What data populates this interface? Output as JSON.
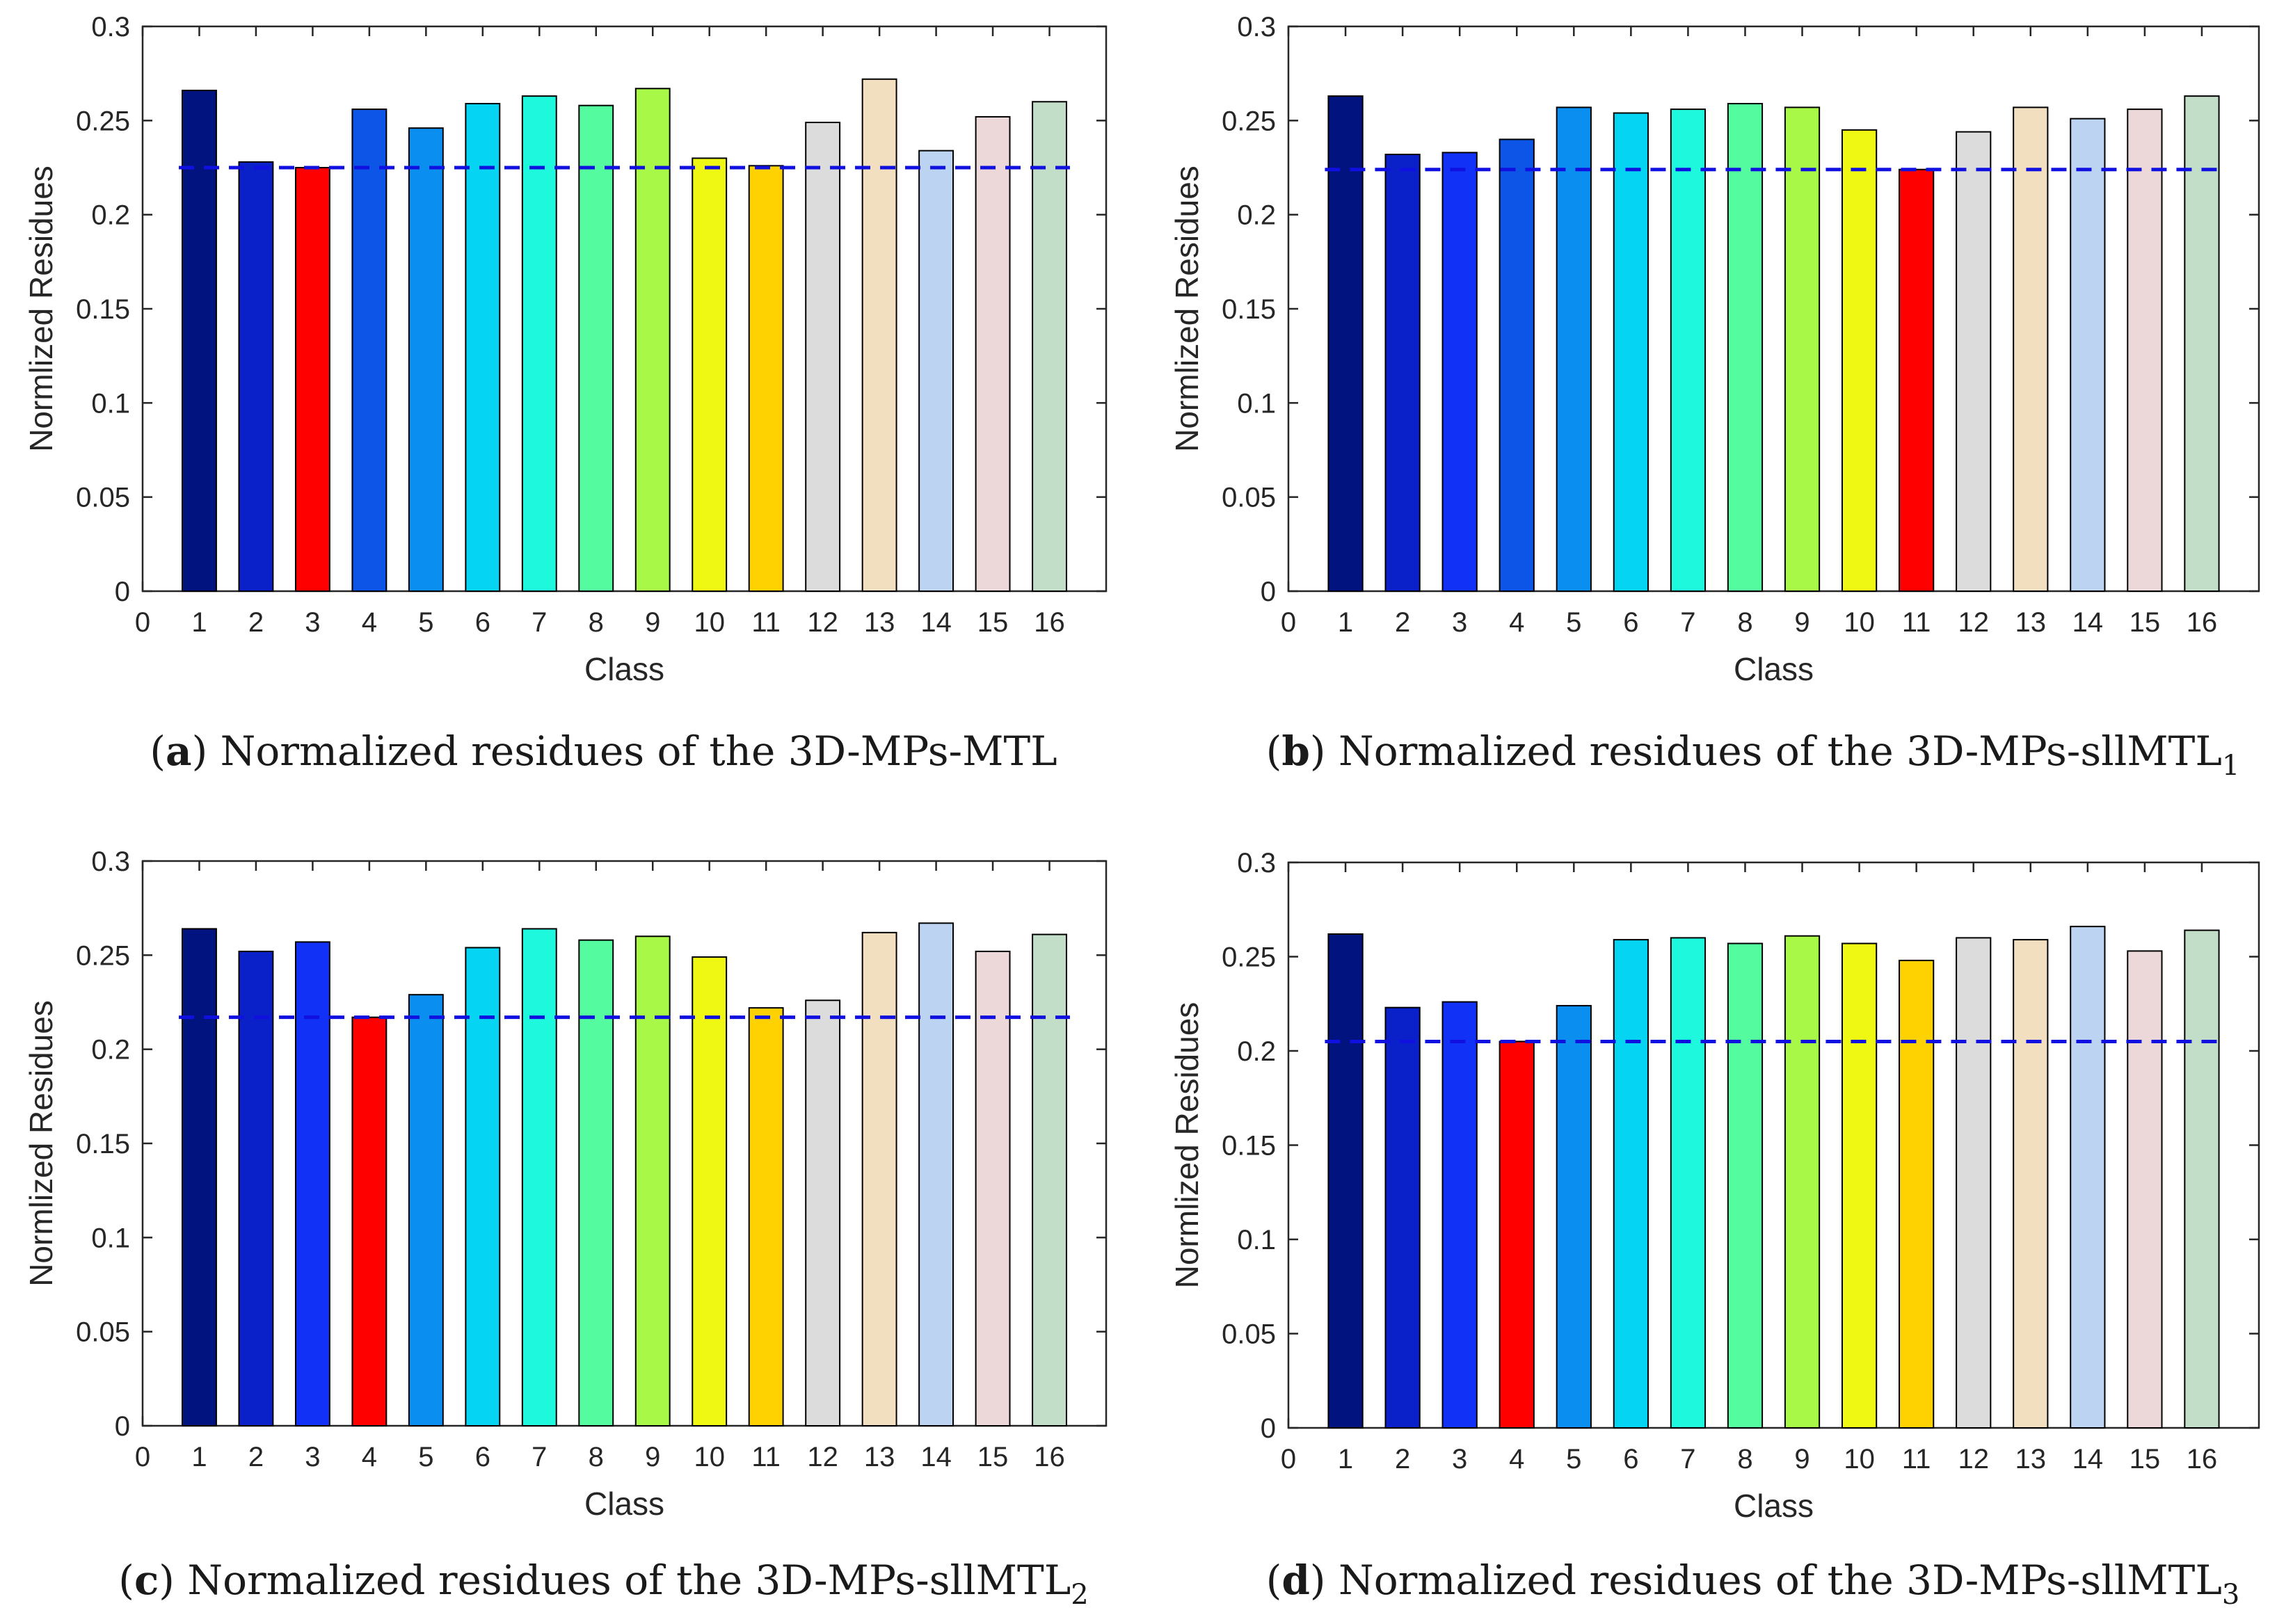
{
  "chart_data": [
    {
      "type": "bar",
      "panel_letter": "a",
      "caption_text": "Normalized residues of the 3D-MPs-MTL",
      "caption_subscript": "",
      "xlabel": "Class",
      "ylabel": "Normlized Residues",
      "categories": [
        1,
        2,
        3,
        4,
        5,
        6,
        7,
        8,
        9,
        10,
        11,
        12,
        13,
        14,
        15,
        16
      ],
      "values": [
        0.266,
        0.228,
        0.225,
        0.256,
        0.246,
        0.259,
        0.263,
        0.258,
        0.267,
        0.23,
        0.226,
        0.249,
        0.272,
        0.234,
        0.252,
        0.26
      ],
      "min_class": 3,
      "reference_line": 0.225,
      "xlim": [
        0,
        17
      ],
      "ylim": [
        0,
        0.3
      ],
      "xticks": [
        "0",
        "1",
        "2",
        "3",
        "4",
        "5",
        "6",
        "7",
        "8",
        "9",
        "10",
        "11",
        "12",
        "13",
        "14",
        "15",
        "16"
      ],
      "yticks": [
        "0",
        "0.05",
        "0.1",
        "0.15",
        "0.2",
        "0.25",
        "0.3"
      ]
    },
    {
      "type": "bar",
      "panel_letter": "b",
      "caption_text": "Normalized residues of the 3D-MPs-sllMTL",
      "caption_subscript": "1",
      "xlabel": "Class",
      "ylabel": "Normlized Residues",
      "categories": [
        1,
        2,
        3,
        4,
        5,
        6,
        7,
        8,
        9,
        10,
        11,
        12,
        13,
        14,
        15,
        16
      ],
      "values": [
        0.263,
        0.232,
        0.233,
        0.24,
        0.257,
        0.254,
        0.256,
        0.259,
        0.257,
        0.245,
        0.224,
        0.244,
        0.257,
        0.251,
        0.256,
        0.263
      ],
      "min_class": 11,
      "reference_line": 0.224,
      "xlim": [
        0,
        17
      ],
      "ylim": [
        0,
        0.3
      ],
      "xticks": [
        "0",
        "1",
        "2",
        "3",
        "4",
        "5",
        "6",
        "7",
        "8",
        "9",
        "10",
        "11",
        "12",
        "13",
        "14",
        "15",
        "16"
      ],
      "yticks": [
        "0",
        "0.05",
        "0.1",
        "0.15",
        "0.2",
        "0.25",
        "0.3"
      ]
    },
    {
      "type": "bar",
      "panel_letter": "c",
      "caption_text": "Normalized residues of the 3D-MPs-sllMTL",
      "caption_subscript": "2",
      "xlabel": "Class",
      "ylabel": "Normlized Residues",
      "categories": [
        1,
        2,
        3,
        4,
        5,
        6,
        7,
        8,
        9,
        10,
        11,
        12,
        13,
        14,
        15,
        16
      ],
      "values": [
        0.264,
        0.252,
        0.257,
        0.217,
        0.229,
        0.254,
        0.264,
        0.258,
        0.26,
        0.249,
        0.222,
        0.226,
        0.262,
        0.267,
        0.252,
        0.261
      ],
      "min_class": 4,
      "reference_line": 0.217,
      "xlim": [
        0,
        17
      ],
      "ylim": [
        0,
        0.3
      ],
      "xticks": [
        "0",
        "1",
        "2",
        "3",
        "4",
        "5",
        "6",
        "7",
        "8",
        "9",
        "10",
        "11",
        "12",
        "13",
        "14",
        "15",
        "16"
      ],
      "yticks": [
        "0",
        "0.05",
        "0.1",
        "0.15",
        "0.2",
        "0.25",
        "0.3"
      ]
    },
    {
      "type": "bar",
      "panel_letter": "d",
      "caption_text": "Normalized residues of the 3D-MPs-sllMTL",
      "caption_subscript": "3",
      "xlabel": "Class",
      "ylabel": "Normlized Residues",
      "categories": [
        1,
        2,
        3,
        4,
        5,
        6,
        7,
        8,
        9,
        10,
        11,
        12,
        13,
        14,
        15,
        16
      ],
      "values": [
        0.262,
        0.223,
        0.226,
        0.205,
        0.224,
        0.259,
        0.26,
        0.257,
        0.261,
        0.257,
        0.248,
        0.26,
        0.259,
        0.266,
        0.253,
        0.264
      ],
      "min_class": 4,
      "reference_line": 0.205,
      "xlim": [
        0,
        17
      ],
      "ylim": [
        0,
        0.3
      ],
      "xticks": [
        "0",
        "1",
        "2",
        "3",
        "4",
        "5",
        "6",
        "7",
        "8",
        "9",
        "10",
        "11",
        "12",
        "13",
        "14",
        "15",
        "16"
      ],
      "yticks": [
        "0",
        "0.05",
        "0.1",
        "0.15",
        "0.2",
        "0.25",
        "0.3"
      ]
    }
  ],
  "colors": {
    "bars": [
      "#00137f",
      "#0a21c9",
      "#1131f6",
      "#0d55e6",
      "#0a8ff0",
      "#05d5f2",
      "#1ef8dc",
      "#55fb9f",
      "#a8f847",
      "#eef812",
      "#fed100",
      "#dcdcdc",
      "#f2dfbf",
      "#bcd4f2",
      "#ecd8d9",
      "#c3dec8"
    ],
    "highlight": "#ff0000",
    "reference_line": "#1010e0",
    "axis": "#262626"
  }
}
